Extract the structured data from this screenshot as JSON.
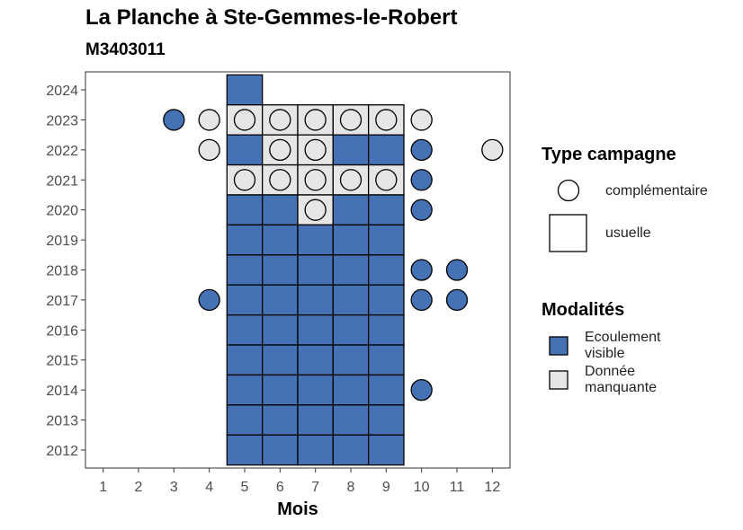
{
  "chart_data": {
    "type": "scatter",
    "title": "La Planche à Ste-Gemmes-le-Robert",
    "subtitle": "M3403011",
    "xlabel": "Mois",
    "ylabel": "",
    "x_ticks": [
      "1",
      "2",
      "3",
      "4",
      "5",
      "6",
      "7",
      "8",
      "9",
      "10",
      "11",
      "12"
    ],
    "y_ticks": [
      "2012",
      "2013",
      "2014",
      "2015",
      "2016",
      "2017",
      "2018",
      "2019",
      "2020",
      "2021",
      "2022",
      "2023",
      "2024"
    ],
    "xlim": [
      0.5,
      12.5
    ],
    "ylim": [
      2011.4,
      2024.6
    ],
    "colors": {
      "ecoulement": "#4472B4",
      "donnee_manquante": "#E6E6E6"
    },
    "usuelle_squares": [
      {
        "month": 5,
        "year": 2024,
        "m": "ecoulement"
      },
      {
        "month": 5,
        "year": 2023,
        "m": "donnee_manquante"
      },
      {
        "month": 6,
        "year": 2023,
        "m": "donnee_manquante"
      },
      {
        "month": 7,
        "year": 2023,
        "m": "donnee_manquante"
      },
      {
        "month": 8,
        "year": 2023,
        "m": "donnee_manquante"
      },
      {
        "month": 9,
        "year": 2023,
        "m": "donnee_manquante"
      },
      {
        "month": 5,
        "year": 2022,
        "m": "ecoulement"
      },
      {
        "month": 6,
        "year": 2022,
        "m": "donnee_manquante"
      },
      {
        "month": 7,
        "year": 2022,
        "m": "donnee_manquante"
      },
      {
        "month": 8,
        "year": 2022,
        "m": "ecoulement"
      },
      {
        "month": 9,
        "year": 2022,
        "m": "ecoulement"
      },
      {
        "month": 5,
        "year": 2021,
        "m": "donnee_manquante"
      },
      {
        "month": 6,
        "year": 2021,
        "m": "donnee_manquante"
      },
      {
        "month": 7,
        "year": 2021,
        "m": "donnee_manquante"
      },
      {
        "month": 8,
        "year": 2021,
        "m": "donnee_manquante"
      },
      {
        "month": 9,
        "year": 2021,
        "m": "donnee_manquante"
      },
      {
        "month": 5,
        "year": 2020,
        "m": "ecoulement"
      },
      {
        "month": 6,
        "year": 2020,
        "m": "ecoulement"
      },
      {
        "month": 7,
        "year": 2020,
        "m": "donnee_manquante"
      },
      {
        "month": 8,
        "year": 2020,
        "m": "ecoulement"
      },
      {
        "month": 9,
        "year": 2020,
        "m": "ecoulement"
      },
      {
        "month": 5,
        "year": 2019,
        "m": "ecoulement"
      },
      {
        "month": 6,
        "year": 2019,
        "m": "ecoulement"
      },
      {
        "month": 7,
        "year": 2019,
        "m": "ecoulement"
      },
      {
        "month": 8,
        "year": 2019,
        "m": "ecoulement"
      },
      {
        "month": 9,
        "year": 2019,
        "m": "ecoulement"
      },
      {
        "month": 5,
        "year": 2018,
        "m": "ecoulement"
      },
      {
        "month": 6,
        "year": 2018,
        "m": "ecoulement"
      },
      {
        "month": 7,
        "year": 2018,
        "m": "ecoulement"
      },
      {
        "month": 8,
        "year": 2018,
        "m": "ecoulement"
      },
      {
        "month": 9,
        "year": 2018,
        "m": "ecoulement"
      },
      {
        "month": 5,
        "year": 2017,
        "m": "ecoulement"
      },
      {
        "month": 6,
        "year": 2017,
        "m": "ecoulement"
      },
      {
        "month": 7,
        "year": 2017,
        "m": "ecoulement"
      },
      {
        "month": 8,
        "year": 2017,
        "m": "ecoulement"
      },
      {
        "month": 9,
        "year": 2017,
        "m": "ecoulement"
      },
      {
        "month": 5,
        "year": 2016,
        "m": "ecoulement"
      },
      {
        "month": 6,
        "year": 2016,
        "m": "ecoulement"
      },
      {
        "month": 7,
        "year": 2016,
        "m": "ecoulement"
      },
      {
        "month": 8,
        "year": 2016,
        "m": "ecoulement"
      },
      {
        "month": 9,
        "year": 2016,
        "m": "ecoulement"
      },
      {
        "month": 5,
        "year": 2015,
        "m": "ecoulement"
      },
      {
        "month": 6,
        "year": 2015,
        "m": "ecoulement"
      },
      {
        "month": 7,
        "year": 2015,
        "m": "ecoulement"
      },
      {
        "month": 8,
        "year": 2015,
        "m": "ecoulement"
      },
      {
        "month": 9,
        "year": 2015,
        "m": "ecoulement"
      },
      {
        "month": 5,
        "year": 2014,
        "m": "ecoulement"
      },
      {
        "month": 6,
        "year": 2014,
        "m": "ecoulement"
      },
      {
        "month": 7,
        "year": 2014,
        "m": "ecoulement"
      },
      {
        "month": 8,
        "year": 2014,
        "m": "ecoulement"
      },
      {
        "month": 9,
        "year": 2014,
        "m": "ecoulement"
      },
      {
        "month": 5,
        "year": 2013,
        "m": "ecoulement"
      },
      {
        "month": 6,
        "year": 2013,
        "m": "ecoulement"
      },
      {
        "month": 7,
        "year": 2013,
        "m": "ecoulement"
      },
      {
        "month": 8,
        "year": 2013,
        "m": "ecoulement"
      },
      {
        "month": 9,
        "year": 2013,
        "m": "ecoulement"
      },
      {
        "month": 5,
        "year": 2012,
        "m": "ecoulement"
      },
      {
        "month": 6,
        "year": 2012,
        "m": "ecoulement"
      },
      {
        "month": 7,
        "year": 2012,
        "m": "ecoulement"
      },
      {
        "month": 8,
        "year": 2012,
        "m": "ecoulement"
      },
      {
        "month": 9,
        "year": 2012,
        "m": "ecoulement"
      }
    ],
    "complementaire_circles": [
      {
        "month": 3,
        "year": 2023,
        "m": "ecoulement"
      },
      {
        "month": 4,
        "year": 2023,
        "m": "donnee_manquante"
      },
      {
        "month": 5,
        "year": 2023,
        "m": "donnee_manquante"
      },
      {
        "month": 6,
        "year": 2023,
        "m": "donnee_manquante"
      },
      {
        "month": 7,
        "year": 2023,
        "m": "donnee_manquante"
      },
      {
        "month": 8,
        "year": 2023,
        "m": "donnee_manquante"
      },
      {
        "month": 9,
        "year": 2023,
        "m": "donnee_manquante"
      },
      {
        "month": 10,
        "year": 2023,
        "m": "donnee_manquante"
      },
      {
        "month": 4,
        "year": 2022,
        "m": "donnee_manquante"
      },
      {
        "month": 6,
        "year": 2022,
        "m": "donnee_manquante"
      },
      {
        "month": 7,
        "year": 2022,
        "m": "donnee_manquante"
      },
      {
        "month": 10,
        "year": 2022,
        "m": "ecoulement"
      },
      {
        "month": 12,
        "year": 2022,
        "m": "donnee_manquante"
      },
      {
        "month": 5,
        "year": 2021,
        "m": "donnee_manquante"
      },
      {
        "month": 6,
        "year": 2021,
        "m": "donnee_manquante"
      },
      {
        "month": 7,
        "year": 2021,
        "m": "donnee_manquante"
      },
      {
        "month": 8,
        "year": 2021,
        "m": "donnee_manquante"
      },
      {
        "month": 9,
        "year": 2021,
        "m": "donnee_manquante"
      },
      {
        "month": 10,
        "year": 2021,
        "m": "ecoulement"
      },
      {
        "month": 7,
        "year": 2020,
        "m": "donnee_manquante"
      },
      {
        "month": 10,
        "year": 2020,
        "m": "ecoulement"
      },
      {
        "month": 10,
        "year": 2018,
        "m": "ecoulement"
      },
      {
        "month": 11,
        "year": 2018,
        "m": "ecoulement"
      },
      {
        "month": 4,
        "year": 2017,
        "m": "ecoulement"
      },
      {
        "month": 10,
        "year": 2017,
        "m": "ecoulement"
      },
      {
        "month": 11,
        "year": 2017,
        "m": "ecoulement"
      },
      {
        "month": 10,
        "year": 2014,
        "m": "ecoulement"
      }
    ],
    "legend": {
      "type_title": "Type campagne",
      "type_items": [
        "complémentaire",
        "usuelle"
      ],
      "mod_title": "Modalités",
      "mod_items": [
        "Ecoulement\nvisible",
        "Donnée\nmanquante"
      ]
    }
  }
}
